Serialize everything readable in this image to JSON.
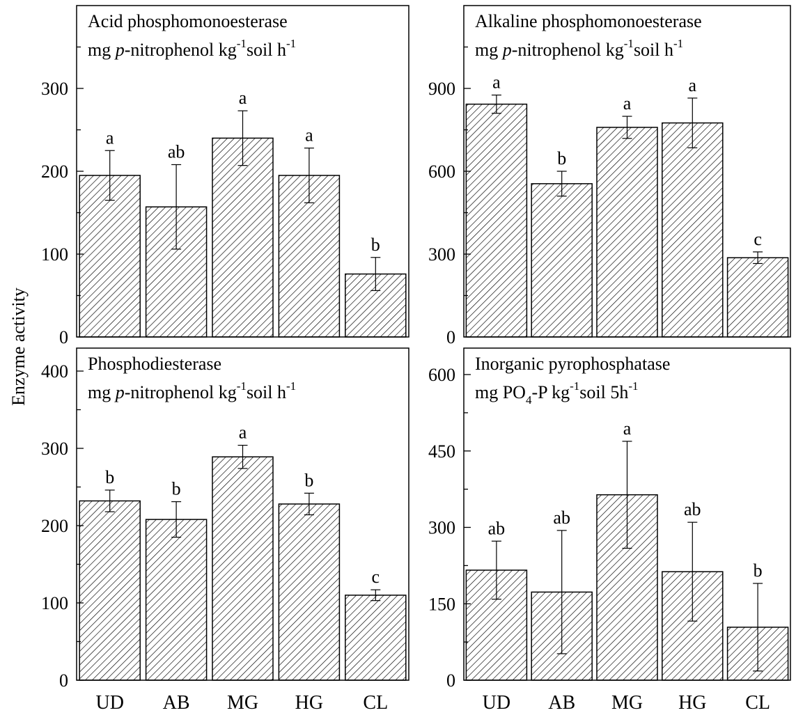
{
  "figure": {
    "ylabel": "Enzyme activity",
    "categories": [
      "UD",
      "AB",
      "MG",
      "HG",
      "CL"
    ]
  },
  "chart_data": [
    {
      "type": "bar",
      "title_lines": [
        "Acid phosphomonoesterase",
        "mg p-nitrophenol kg-1soil h-1"
      ],
      "categories": [
        "UD",
        "AB",
        "MG",
        "HG",
        "CL"
      ],
      "values": [
        195,
        157,
        240,
        195,
        76
      ],
      "errors": [
        30,
        51,
        33,
        33,
        20
      ],
      "significance": [
        "a",
        "ab",
        "a",
        "a",
        "b"
      ],
      "ylim": [
        0,
        300
      ],
      "yticks": [
        0,
        100,
        200,
        300
      ],
      "ylabel": "Enzyme activity"
    },
    {
      "type": "bar",
      "title_lines": [
        "Alkaline phosphomonoesterase",
        "mg p-nitrophenol kg-1soil h-1"
      ],
      "categories": [
        "UD",
        "AB",
        "MG",
        "HG",
        "CL"
      ],
      "values": [
        843,
        555,
        759,
        775,
        287
      ],
      "errors": [
        33,
        45,
        40,
        90,
        21
      ],
      "significance": [
        "a",
        "b",
        "a",
        "a",
        "c"
      ],
      "ylim": [
        0,
        900
      ],
      "yticks": [
        0,
        300,
        600,
        900
      ]
    },
    {
      "type": "bar",
      "title_lines": [
        "Phosphodiesterase",
        "mg p-nitrophenol kg-1soil h-1"
      ],
      "categories": [
        "UD",
        "AB",
        "MG",
        "HG",
        "CL"
      ],
      "values": [
        232,
        208,
        289,
        228,
        110
      ],
      "errors": [
        14,
        23,
        15,
        14,
        7
      ],
      "significance": [
        "b",
        "b",
        "a",
        "b",
        "c"
      ],
      "ylim": [
        0,
        400
      ],
      "yticks": [
        0,
        100,
        200,
        300,
        400
      ]
    },
    {
      "type": "bar",
      "title_lines": [
        "Inorganic pyrophosphatase",
        "mg PO4-P kg-1soil 5h-1"
      ],
      "categories": [
        "UD",
        "AB",
        "MG",
        "HG",
        "CL"
      ],
      "values": [
        216,
        173,
        364,
        213,
        104
      ],
      "errors": [
        57,
        121,
        105,
        97,
        86
      ],
      "significance": [
        "ab",
        "ab",
        "a",
        "ab",
        "b"
      ],
      "ylim": [
        0,
        600
      ],
      "yticks": [
        0,
        150,
        300,
        450,
        600
      ]
    }
  ]
}
